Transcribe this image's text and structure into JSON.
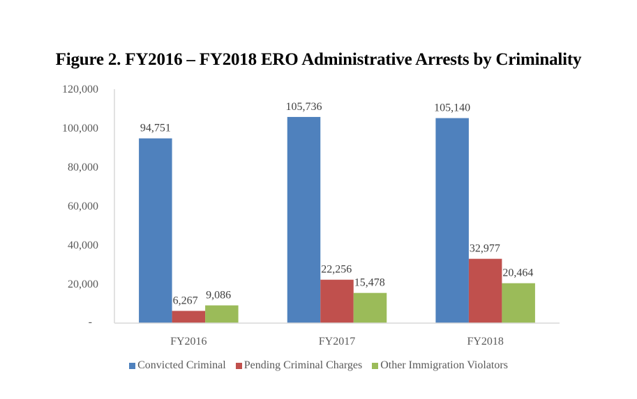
{
  "chart_data": {
    "type": "bar",
    "title": "Figure 2. FY2016 – FY2018 ERO Administrative Arrests by Criminality",
    "xlabel": "",
    "ylabel": "",
    "categories": [
      "FY2016",
      "FY2017",
      "FY2018"
    ],
    "series": [
      {
        "name": "Convicted Criminal",
        "color": "#4F81BD",
        "values": [
          94751,
          105736,
          105140
        ],
        "labels": [
          "94,751",
          "105,736",
          "105,140"
        ]
      },
      {
        "name": "Pending Criminal Charges",
        "color": "#C0504D",
        "values": [
          6267,
          22256,
          32977
        ],
        "labels": [
          "6,267",
          "22,256",
          "32,977"
        ]
      },
      {
        "name": "Other Immigration Violators",
        "color": "#9BBB59",
        "values": [
          9086,
          15478,
          20464
        ],
        "labels": [
          "9,086",
          "15,478",
          "20,464"
        ]
      }
    ],
    "ylim": [
      0,
      120000
    ],
    "yticks": [
      0,
      20000,
      40000,
      60000,
      80000,
      100000,
      120000
    ],
    "ytick_labels": [
      "-",
      "20,000",
      "40,000",
      "60,000",
      "80,000",
      "100,000",
      "120,000"
    ],
    "grid": false,
    "legend_position": "bottom"
  }
}
